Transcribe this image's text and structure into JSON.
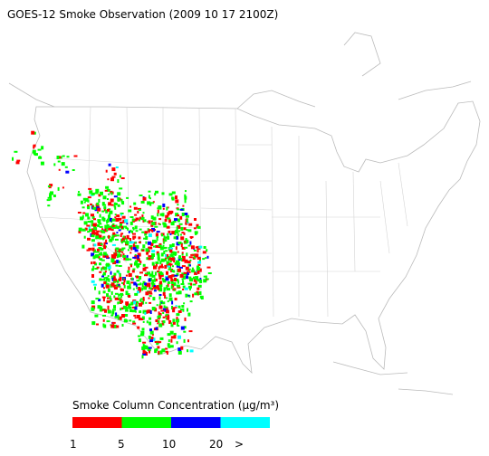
{
  "title": "GOES-12 Smoke Observation (2009 10 17  2100Z)",
  "legend": {
    "title": "Smoke Column Concentration (μg/m³)",
    "colors": [
      "#ff0000",
      "#00ff00",
      "#0000ff",
      "#00ffff"
    ],
    "ticks": [
      "1",
      "5",
      "10",
      "20",
      ">"
    ]
  }
}
